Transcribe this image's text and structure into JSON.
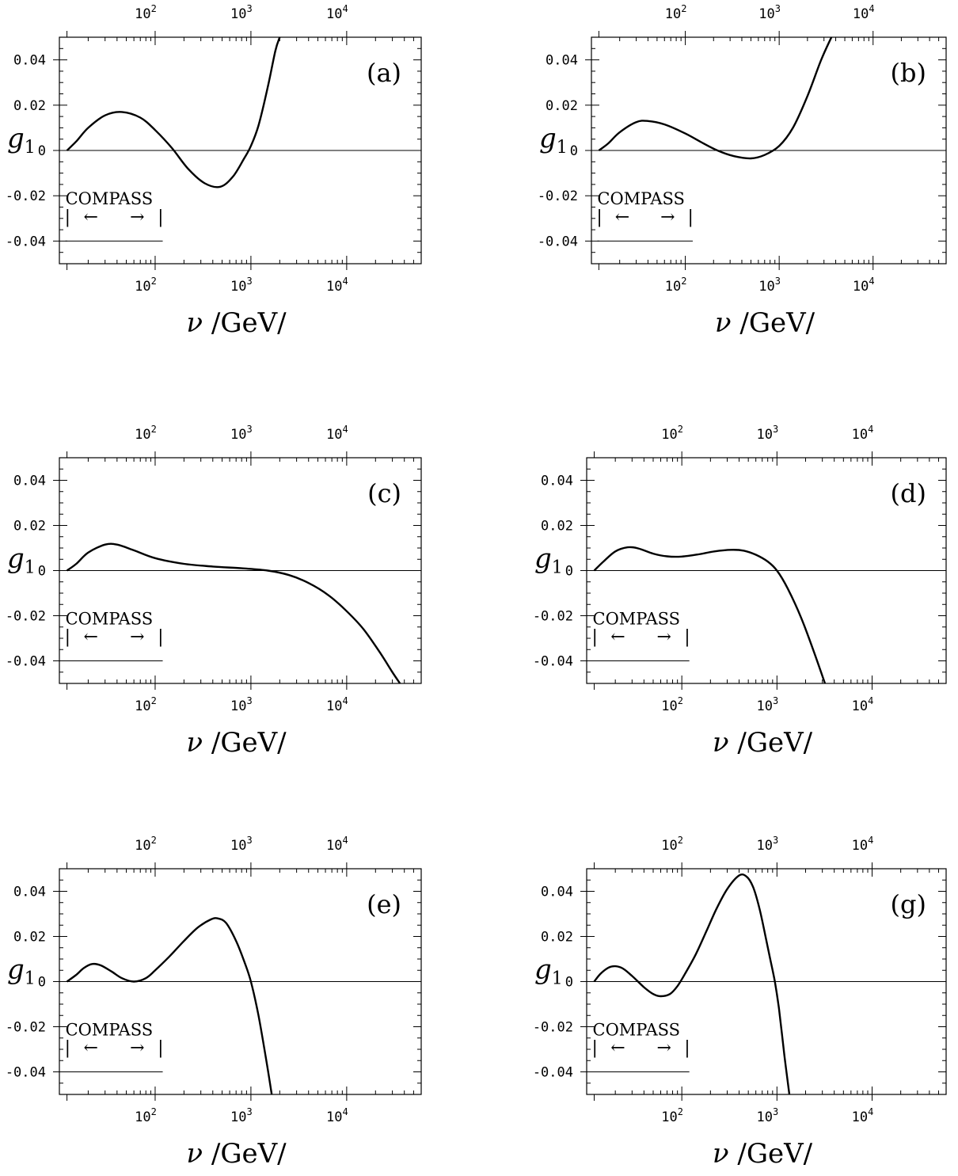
{
  "chart_data": [
    {
      "type": "line",
      "panel": "(a)",
      "ylabel": "g",
      "ylabel_sub": "1",
      "xlabel_var": "ν",
      "xlabel_unit": "/GeV/",
      "x_scale": "log",
      "xlim": [
        10,
        60000
      ],
      "ylim": [
        -0.05,
        0.05
      ],
      "x_ticks": [
        "10",
        "2",
        "10",
        "3",
        "10",
        "4"
      ],
      "y_ticks": [
        "0.04",
        "0.02",
        "0",
        "-0.02",
        "-0.04"
      ],
      "annotation": "COMPASS",
      "band_arrows": "|←        →|",
      "band_range": [
        12,
        120
      ],
      "series": [
        {
          "x": [
            12,
            15,
            20,
            30,
            45,
            70,
            100,
            150,
            220,
            330,
            480,
            650,
            850,
            1000,
            1200,
            1500,
            1800,
            2000
          ],
          "y": [
            0,
            0.004,
            0.01,
            0.0155,
            0.017,
            0.0145,
            0.009,
            0.001,
            -0.008,
            -0.0145,
            -0.016,
            -0.0115,
            -0.0035,
            0.002,
            0.011,
            0.028,
            0.044,
            0.05
          ]
        }
      ]
    },
    {
      "type": "line",
      "panel": "(b)",
      "ylabel": "g",
      "ylabel_sub": "1",
      "xlabel_var": "ν",
      "xlabel_unit": "/GeV/",
      "x_scale": "log",
      "xlim": [
        10,
        60000
      ],
      "ylim": [
        -0.05,
        0.05
      ],
      "x_ticks": [
        "10",
        "2",
        "10",
        "3",
        "10",
        "4"
      ],
      "y_ticks": [
        "0.04",
        "0.02",
        "0",
        "-0.02",
        "-0.04"
      ],
      "annotation": "COMPASS",
      "band_arrows": "|←        →|",
      "band_range": [
        12,
        120
      ],
      "series": [
        {
          "x": [
            12,
            15,
            20,
            30,
            40,
            60,
            100,
            150,
            220,
            330,
            500,
            700,
            1000,
            1400,
            2000,
            2800,
            3600
          ],
          "y": [
            0,
            0.003,
            0.008,
            0.0125,
            0.013,
            0.0115,
            0.0075,
            0.0035,
            0,
            -0.0025,
            -0.0035,
            -0.002,
            0.002,
            0.01,
            0.024,
            0.04,
            0.05
          ]
        }
      ]
    },
    {
      "type": "line",
      "panel": "(c)",
      "ylabel": "g",
      "ylabel_sub": "1",
      "xlabel_var": "ν",
      "xlabel_unit": "/GeV/",
      "x_scale": "log",
      "xlim": [
        10,
        60000
      ],
      "ylim": [
        -0.05,
        0.05
      ],
      "x_ticks": [
        "10",
        "2",
        "10",
        "3",
        "10",
        "4"
      ],
      "y_ticks": [
        "0.04",
        "0.02",
        "0",
        "-0.02",
        "-0.04"
      ],
      "annotation": "COMPASS",
      "band_arrows": "|←        →|",
      "band_range": [
        12,
        120
      ],
      "series": [
        {
          "x": [
            12,
            15,
            20,
            30,
            40,
            60,
            100,
            200,
            400,
            800,
            1500,
            2500,
            4000,
            6500,
            10000,
            15000,
            22000,
            30000,
            36000
          ],
          "y": [
            0,
            0.003,
            0.008,
            0.0115,
            0.0115,
            0.009,
            0.0055,
            0.003,
            0.0018,
            0.001,
            0,
            -0.002,
            -0.0055,
            -0.011,
            -0.018,
            -0.026,
            -0.036,
            -0.045,
            -0.05
          ]
        }
      ]
    },
    {
      "type": "line",
      "panel": "(d)",
      "ylabel": "g",
      "ylabel_sub": "1",
      "xlabel_var": "ν",
      "xlabel_unit": "/GeV/",
      "x_scale": "log",
      "xlim": [
        10,
        60000
      ],
      "ylim": [
        -0.05,
        0.05
      ],
      "x_ticks": [
        "10",
        "2",
        "10",
        "3",
        "10",
        "4"
      ],
      "y_ticks": [
        "0.04",
        "0.02",
        "0",
        "-0.02",
        "-0.04"
      ],
      "annotation": "COMPASS",
      "band_arrows": "|←        →|",
      "band_range": [
        12,
        120
      ],
      "series": [
        {
          "x": [
            12,
            15,
            20,
            27,
            35,
            50,
            70,
            100,
            150,
            220,
            330,
            450,
            600,
            800,
            1000,
            1300,
            1800,
            2400,
            3200
          ],
          "y": [
            0,
            0.004,
            0.0085,
            0.0103,
            0.0098,
            0.0075,
            0.0063,
            0.0062,
            0.0072,
            0.0085,
            0.0092,
            0.0088,
            0.007,
            0.004,
            0,
            -0.008,
            -0.021,
            -0.035,
            -0.05
          ]
        }
      ]
    },
    {
      "type": "line",
      "panel": "(e)",
      "ylabel": "g",
      "ylabel_sub": "1",
      "xlabel_var": "ν",
      "xlabel_unit": "/GeV/",
      "x_scale": "log",
      "xlim": [
        10,
        60000
      ],
      "ylim": [
        -0.05,
        0.05
      ],
      "x_ticks": [
        "10",
        "2",
        "10",
        "3",
        "10",
        "4"
      ],
      "y_ticks": [
        "0.04",
        "0.02",
        "0",
        "-0.02",
        "-0.04"
      ],
      "annotation": "COMPASS",
      "band_arrows": "|←        →|",
      "band_range": [
        12,
        120
      ],
      "series": [
        {
          "x": [
            12,
            15,
            18,
            22,
            27,
            35,
            45,
            60,
            80,
            100,
            140,
            200,
            280,
            380,
            450,
            550,
            700,
            850,
            1000,
            1200,
            1450,
            1650
          ],
          "y": [
            0,
            0.003,
            0.006,
            0.0078,
            0.0072,
            0.0045,
            0.0015,
            0,
            0.0015,
            0.005,
            0.011,
            0.018,
            0.024,
            0.0275,
            0.028,
            0.026,
            0.018,
            0.009,
            0,
            -0.015,
            -0.035,
            -0.05
          ]
        }
      ]
    },
    {
      "type": "line",
      "panel": "(g)",
      "ylabel": "g",
      "ylabel_sub": "1",
      "xlabel_var": "ν",
      "xlabel_unit": "/GeV/",
      "x_scale": "log",
      "xlim": [
        10,
        60000
      ],
      "ylim": [
        -0.05,
        0.05
      ],
      "x_ticks": [
        "10",
        "2",
        "10",
        "3",
        "10",
        "4"
      ],
      "y_ticks": [
        "0.04",
        "0.02",
        "0",
        "-0.02",
        "-0.04"
      ],
      "annotation": "COMPASS",
      "band_arrows": "|←        →|",
      "band_range": [
        12,
        120
      ],
      "series": [
        {
          "x": [
            12,
            14,
            17,
            20,
            24,
            30,
            40,
            50,
            60,
            75,
            90,
            110,
            140,
            180,
            230,
            300,
            400,
            480,
            560,
            650,
            750,
            850,
            950,
            1050,
            1200,
            1350
          ],
          "y": [
            0,
            0.0035,
            0.0062,
            0.0068,
            0.0058,
            0.0025,
            -0.0025,
            -0.0055,
            -0.0065,
            -0.0055,
            -0.002,
            0.004,
            0.012,
            0.022,
            0.032,
            0.041,
            0.047,
            0.0465,
            0.042,
            0.033,
            0.021,
            0.01,
            0,
            -0.012,
            -0.033,
            -0.05
          ]
        }
      ]
    }
  ]
}
